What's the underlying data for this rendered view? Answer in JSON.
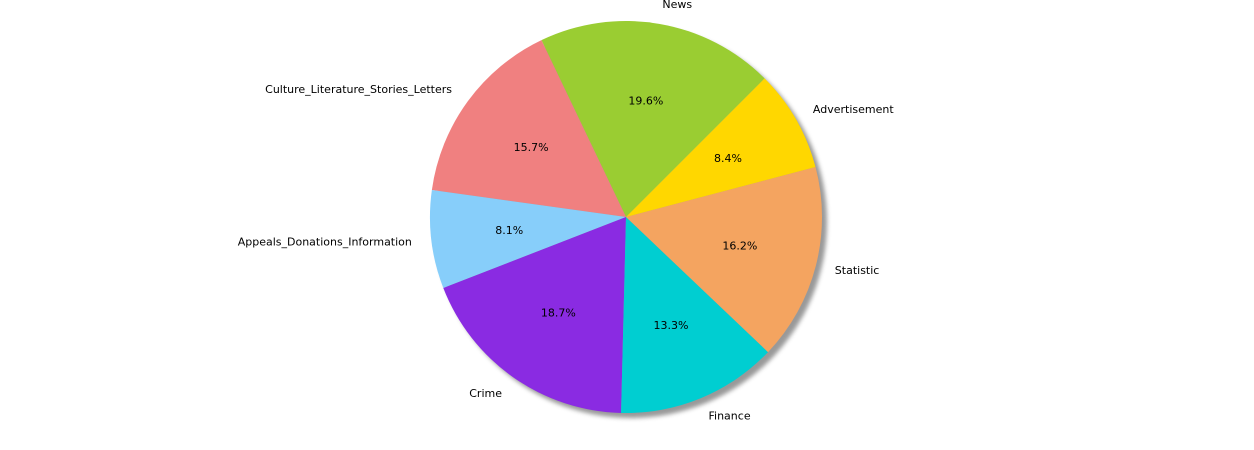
{
  "chart_data": {
    "type": "pie",
    "start_angle_deg": 45,
    "direction": "counterclockwise",
    "shadow": true,
    "legend": "none",
    "slices": [
      {
        "label": "News",
        "value": 19.6,
        "pct_text": "19.6%",
        "color": "#9acd32"
      },
      {
        "label": "Culture_Literature_Stories_Letters",
        "value": 15.7,
        "pct_text": "15.7%",
        "color": "#f08080"
      },
      {
        "label": "Appeals_Donations_Information",
        "value": 8.1,
        "pct_text": "8.1%",
        "color": "#87cefa"
      },
      {
        "label": "Crime",
        "value": 18.7,
        "pct_text": "18.7%",
        "color": "#8a2be2"
      },
      {
        "label": "Finance",
        "value": 13.3,
        "pct_text": "13.3%",
        "color": "#00ced1"
      },
      {
        "label": "Statistic",
        "value": 16.2,
        "pct_text": "16.2%",
        "color": "#f4a460"
      },
      {
        "label": "Advertisement",
        "value": 8.4,
        "pct_text": "8.4%",
        "color": "#ffd700"
      }
    ]
  }
}
